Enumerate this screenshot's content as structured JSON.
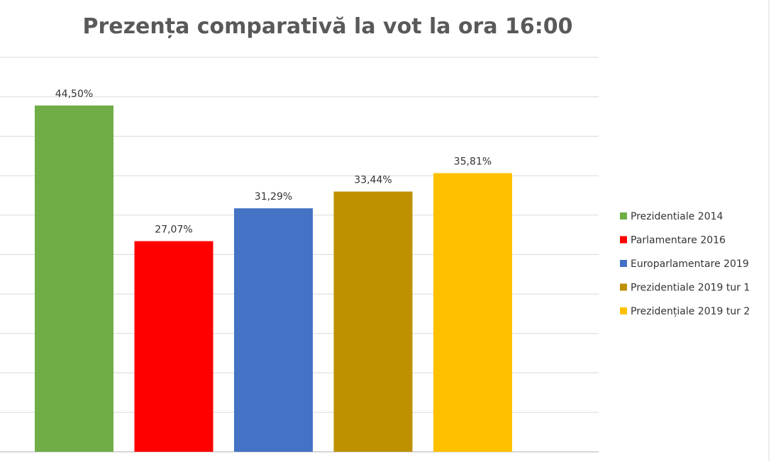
{
  "chart_data": {
    "type": "bar",
    "title": "Prezența comparativă la vot la ora 16:00",
    "categories": [
      "Prezidentiale 2014",
      "Parlamentare 2016",
      "Europarlamentare 2019",
      "Prezidentiale 2019 tur 1",
      "Prezidențiale 2019 tur 2"
    ],
    "values": [
      44.5,
      27.07,
      31.29,
      33.44,
      35.81
    ],
    "data_labels": [
      "44,50%",
      "27,07%",
      "31,29%",
      "33,44%",
      "35,81%"
    ],
    "colors": [
      "#70ad47",
      "#ff0000",
      "#4472c4",
      "#bf9000",
      "#ffc000"
    ],
    "ylim": [
      0,
      45
    ],
    "grid": true,
    "legend_position": "right"
  }
}
